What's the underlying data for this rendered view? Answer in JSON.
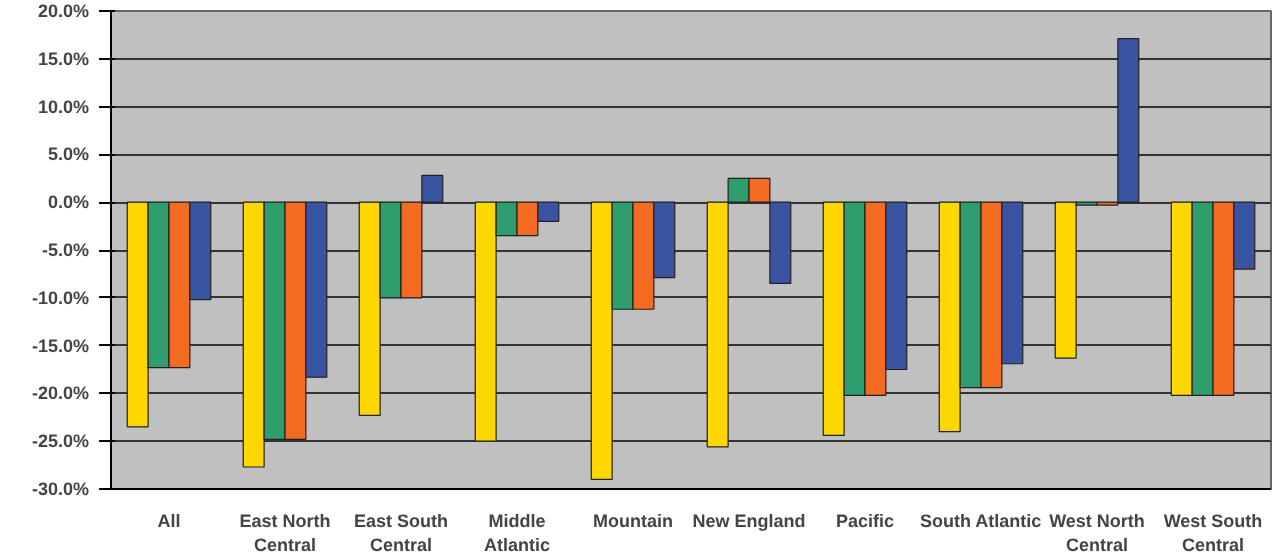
{
  "chart_data": {
    "type": "bar",
    "categories": [
      "All",
      "East North Central",
      "East South Central",
      "Middle Atlantic",
      "Mountain",
      "New England",
      "Pacific",
      "South Atlantic",
      "West North Central",
      "West South Central"
    ],
    "series": [
      {
        "color": "#ffd700",
        "values": [
          -23.5,
          -27.7,
          -22.3,
          -25,
          -29,
          -25.6,
          -24.4,
          -24,
          -16.3,
          -20.2
        ]
      },
      {
        "color": "#2e9e6e",
        "values": [
          -17.3,
          -24.8,
          -10,
          -3.5,
          -11.2,
          2.5,
          -20.2,
          -19.4,
          -0.3,
          -20.2
        ]
      },
      {
        "color": "#f26b21",
        "values": [
          -17.3,
          -24.8,
          -10,
          -3.5,
          -11.2,
          2.5,
          -20.2,
          -19.4,
          -0.3,
          -20.2
        ]
      },
      {
        "color": "#3a54a4",
        "values": [
          -10.2,
          -18.3,
          2.8,
          -2,
          -7.9,
          -8.5,
          -17.5,
          -16.9,
          17.1,
          -7
        ]
      }
    ],
    "ylim": [
      -30,
      20
    ],
    "yticks": [
      {
        "value": -30,
        "label": "-30.0%"
      },
      {
        "value": -25,
        "label": "-25.0%"
      },
      {
        "value": -20,
        "label": "-20.0%"
      },
      {
        "value": -15,
        "label": "-15.0%"
      },
      {
        "value": -10,
        "label": "-10.0%"
      },
      {
        "value": -5,
        "label": "-5.0%"
      },
      {
        "value": 0,
        "label": "0.0%"
      },
      {
        "value": 5,
        "label": "5.0%"
      },
      {
        "value": 10,
        "label": "10.0%"
      },
      {
        "value": 15,
        "label": "15.0%"
      },
      {
        "value": 20,
        "label": "20.0%"
      }
    ],
    "grid": "y"
  }
}
